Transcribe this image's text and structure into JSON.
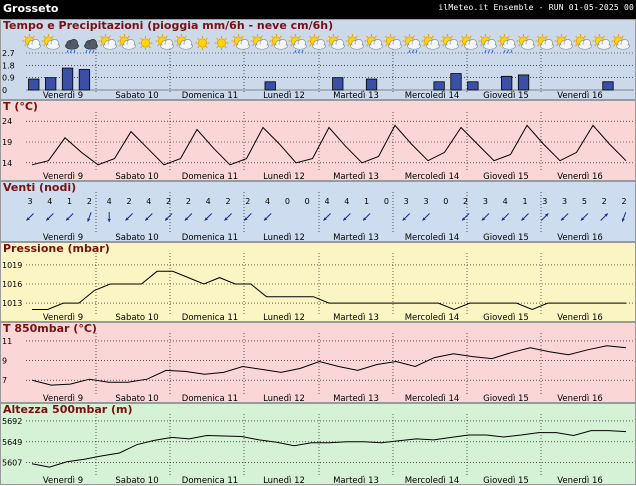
{
  "header": {
    "location": "Grosseto",
    "run_info": "ilMeteo.it Ensemble - RUN 01-05-2025 00"
  },
  "days": [
    "Venerdì 9",
    "Sabato 10",
    "Domenica 11",
    "Lunedì 12",
    "Martedì 13",
    "Mercoledì 14",
    "Giovedì 15",
    "Venerdì 16"
  ],
  "weather_icons": [
    "sun-cloud",
    "sun-cloud",
    "rain-cloud",
    "rain-cloud",
    "sun-cloud",
    "sun-cloud",
    "sun",
    "sun-cloud",
    "sun-cloud",
    "sun",
    "sun",
    "sun-cloud",
    "sun-cloud",
    "sun-cloud",
    "rain-sun",
    "sun-cloud",
    "sun-cloud",
    "sun-cloud",
    "sun-cloud",
    "sun-cloud",
    "rain-sun",
    "sun-cloud",
    "sun-cloud",
    "sun-cloud",
    "rain-sun",
    "rain-sun",
    "sun-cloud",
    "sun-cloud",
    "sun-cloud",
    "sun-cloud",
    "sun-cloud",
    "sun-cloud"
  ],
  "colors": {
    "precip_bg": "#ccd9ea",
    "temp_bg": "#fbd6d6",
    "wind_bg": "#cddcee",
    "pressure_bg": "#fbf5c4",
    "t850_bg": "#fbd6d6",
    "z500_bg": "#d6f2d6",
    "bar": "#3a4fa5"
  },
  "chart_data": [
    {
      "type": "bar",
      "title": "Tempo e Precipitazioni (pioggia mm/6h - neve cm/6h)",
      "yticks": [
        "2.7",
        "1.8",
        "0.9",
        "0"
      ],
      "ylim": [
        0,
        2.7
      ],
      "values": [
        0.8,
        0.9,
        1.6,
        1.5,
        0,
        0,
        0,
        0,
        0,
        0,
        0,
        0,
        0,
        0,
        0.6,
        0,
        0,
        0,
        0.9,
        0,
        0.8,
        0,
        0,
        0,
        0.6,
        1.2,
        0.6,
        0,
        1.0,
        1.1,
        0,
        0,
        0,
        0,
        0.6,
        0
      ]
    },
    {
      "type": "line",
      "title": "T (°C)",
      "yticks": [
        "24",
        "19",
        "14"
      ],
      "ylim": [
        12.5,
        25.5
      ],
      "values": [
        13.5,
        14.5,
        20.0,
        16.5,
        13.5,
        15.0,
        21.5,
        17.5,
        13.5,
        15.0,
        22.0,
        17.5,
        13.5,
        15.0,
        22.5,
        18.5,
        14.0,
        15.0,
        22.5,
        18.0,
        14.0,
        15.5,
        23.0,
        18.5,
        14.5,
        16.5,
        22.5,
        18.5,
        14.5,
        16.0,
        23.0,
        18.5,
        14.5,
        16.5,
        23.0,
        18.5,
        14.5
      ]
    },
    {
      "type": "scatter",
      "title": "Venti (nodi)",
      "speeds": [
        3,
        4,
        1,
        2,
        4,
        2,
        4,
        2,
        2,
        4,
        2,
        2,
        4,
        0,
        0,
        4,
        4,
        1,
        0,
        3,
        3,
        0,
        2,
        3,
        4,
        1,
        3,
        3,
        5,
        2,
        2
      ],
      "directions_deg": [
        225,
        225,
        225,
        200,
        180,
        225,
        225,
        225,
        225,
        225,
        225,
        225,
        225,
        200,
        200,
        225,
        225,
        225,
        45,
        225,
        225,
        225,
        225,
        225,
        225,
        225,
        45,
        225,
        225,
        45,
        200
      ]
    },
    {
      "type": "line",
      "title": "Pressione (mbar)",
      "yticks": [
        "1019",
        "1016",
        "1013"
      ],
      "ylim": [
        1011.6,
        1020.4
      ],
      "values": [
        1012,
        1012,
        1013,
        1013,
        1015,
        1016,
        1016,
        1016,
        1018,
        1018,
        1017,
        1016,
        1017,
        1016,
        1016,
        1014,
        1014,
        1014,
        1014,
        1013,
        1013,
        1013,
        1013,
        1013,
        1013,
        1013,
        1013,
        1012,
        1013,
        1013,
        1013,
        1013,
        1012,
        1013,
        1013,
        1013,
        1013,
        1013,
        1013
      ]
    },
    {
      "type": "line",
      "title": "T 850mbar (°C)",
      "yticks": [
        "11",
        "9",
        "7"
      ],
      "ylim": [
        5.8,
        11.5
      ],
      "values": [
        7.0,
        6.5,
        6.6,
        7.1,
        6.8,
        6.8,
        7.1,
        8.0,
        7.9,
        7.6,
        7.8,
        8.4,
        8.1,
        7.8,
        8.2,
        8.9,
        8.4,
        8.0,
        8.6,
        8.9,
        8.4,
        9.3,
        9.7,
        9.4,
        9.2,
        9.8,
        10.3,
        9.9,
        9.6,
        10.1,
        10.5,
        10.3
      ]
    },
    {
      "type": "line",
      "title": "Altezza 500mbar (m)",
      "yticks": [
        "5692",
        "5649",
        "5607"
      ],
      "ylim": [
        5587,
        5700
      ],
      "values": [
        5604,
        5597,
        5608,
        5613,
        5620,
        5626,
        5643,
        5652,
        5658,
        5655,
        5662,
        5661,
        5660,
        5653,
        5648,
        5641,
        5647,
        5647,
        5649,
        5649,
        5647,
        5651,
        5655,
        5653,
        5658,
        5663,
        5663,
        5659,
        5663,
        5668,
        5668,
        5662,
        5672,
        5672,
        5670
      ]
    }
  ]
}
